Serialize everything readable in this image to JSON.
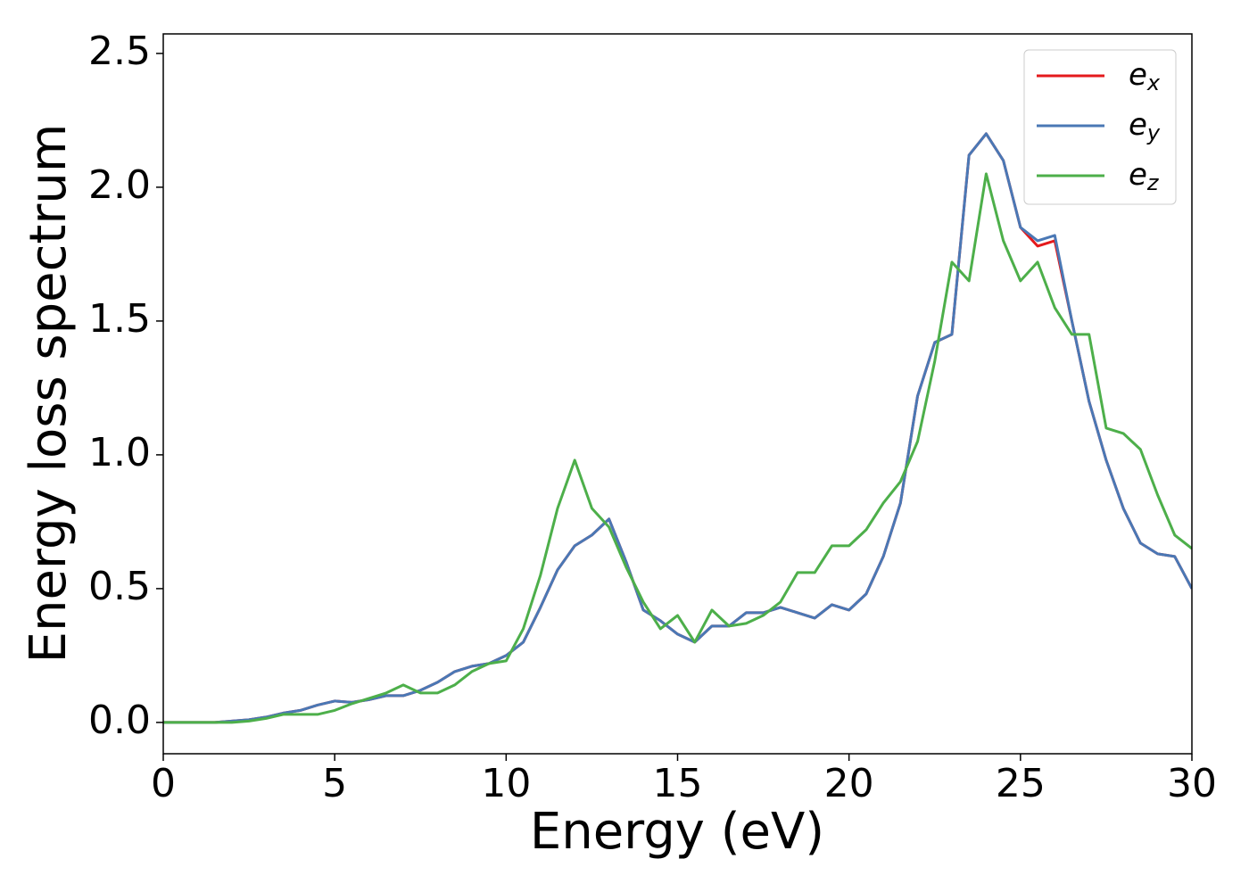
{
  "chart_data": {
    "type": "line",
    "xlabel": "Energy (eV)",
    "ylabel": "Energy loss spectrum",
    "x": [
      0,
      0.5,
      1,
      1.5,
      2,
      2.5,
      3,
      3.5,
      4,
      4.5,
      5,
      5.5,
      6,
      6.5,
      7,
      7.5,
      8,
      8.5,
      9,
      9.5,
      10,
      10.5,
      11,
      11.5,
      12,
      12.5,
      13,
      13.5,
      14,
      14.5,
      15,
      15.5,
      16,
      16.5,
      17,
      17.5,
      18,
      18.5,
      19,
      19.5,
      20,
      20.5,
      21,
      21.5,
      22,
      22.5,
      23,
      23.5,
      24,
      24.5,
      25,
      25.5,
      26,
      26.5,
      27,
      27.5,
      28,
      28.5,
      29,
      29.5,
      30
    ],
    "series": [
      {
        "name": "e_x",
        "color": "#e41a1c",
        "values": [
          0,
          0,
          0,
          0,
          0.005,
          0.01,
          0.02,
          0.035,
          0.045,
          0.065,
          0.08,
          0.075,
          0.085,
          0.1,
          0.1,
          0.12,
          0.15,
          0.19,
          0.21,
          0.22,
          0.25,
          0.3,
          0.43,
          0.57,
          0.66,
          0.7,
          0.76,
          0.6,
          0.42,
          0.38,
          0.33,
          0.3,
          0.36,
          0.36,
          0.41,
          0.41,
          0.43,
          0.41,
          0.39,
          0.44,
          0.42,
          0.48,
          0.62,
          0.82,
          1.22,
          1.42,
          1.45,
          2.12,
          2.2,
          2.1,
          1.85,
          1.78,
          1.8,
          1.5,
          1.2,
          0.98,
          0.8,
          0.67,
          0.63,
          0.62,
          0.5
        ]
      },
      {
        "name": "e_y",
        "color": "#4a78b5",
        "values": [
          0,
          0,
          0,
          0,
          0.005,
          0.01,
          0.02,
          0.035,
          0.045,
          0.065,
          0.08,
          0.075,
          0.085,
          0.1,
          0.1,
          0.12,
          0.15,
          0.19,
          0.21,
          0.22,
          0.25,
          0.3,
          0.43,
          0.57,
          0.66,
          0.7,
          0.76,
          0.6,
          0.42,
          0.38,
          0.33,
          0.3,
          0.36,
          0.36,
          0.41,
          0.41,
          0.43,
          0.41,
          0.39,
          0.44,
          0.42,
          0.48,
          0.62,
          0.82,
          1.22,
          1.42,
          1.45,
          2.12,
          2.2,
          2.1,
          1.85,
          1.8,
          1.82,
          1.5,
          1.2,
          0.98,
          0.8,
          0.67,
          0.63,
          0.62,
          0.5
        ]
      },
      {
        "name": "e_z",
        "color": "#4daf4a",
        "values": [
          0,
          0,
          0,
          0,
          0,
          0.005,
          0.015,
          0.03,
          0.03,
          0.03,
          0.045,
          0.07,
          0.09,
          0.11,
          0.14,
          0.11,
          0.11,
          0.14,
          0.19,
          0.22,
          0.23,
          0.35,
          0.55,
          0.8,
          0.98,
          0.8,
          0.73,
          0.58,
          0.45,
          0.35,
          0.4,
          0.3,
          0.42,
          0.36,
          0.37,
          0.4,
          0.45,
          0.56,
          0.56,
          0.66,
          0.66,
          0.72,
          0.82,
          0.9,
          1.05,
          1.35,
          1.72,
          1.65,
          2.05,
          1.8,
          1.65,
          1.72,
          1.55,
          1.45,
          1.45,
          1.1,
          1.08,
          1.02,
          0.85,
          0.7,
          0.65
        ]
      }
    ],
    "xlim": [
      0,
      30
    ],
    "xticks": [
      0,
      5,
      10,
      15,
      20,
      25,
      30
    ],
    "ylim": [
      -0.117,
      2.573
    ],
    "yticks": [
      {
        "value": 0,
        "label": "0.0"
      },
      0.5,
      {
        "value": 1,
        "label": "1.0"
      },
      1.5,
      {
        "value": 2,
        "label": "2.0"
      },
      2.5
    ],
    "grid": false,
    "legend": "upper right"
  }
}
